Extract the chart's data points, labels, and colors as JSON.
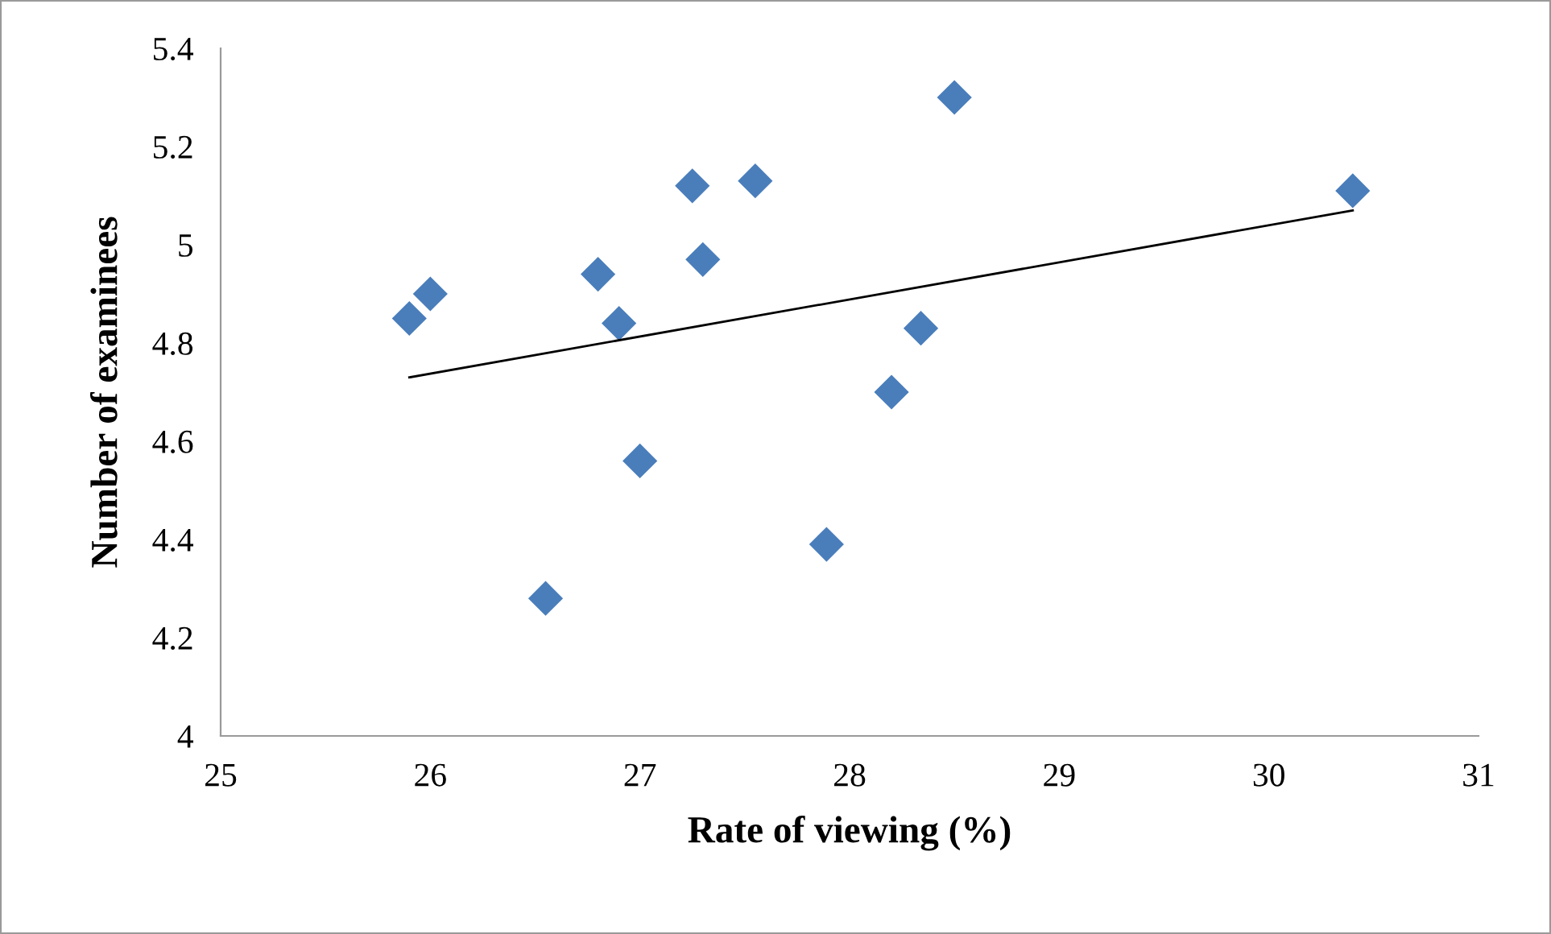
{
  "chart_data": {
    "type": "scatter",
    "xlabel": "Rate of viewing (%)",
    "ylabel": "Number of examinees",
    "xlim": [
      25,
      31
    ],
    "xticks": [
      25,
      26,
      27,
      28,
      29,
      30,
      31
    ],
    "ylim": [
      4,
      5.4
    ],
    "yticks": [
      {
        "value": 4,
        "label": "4"
      },
      4.2,
      4.4,
      4.6,
      4.8,
      {
        "value": 5,
        "label": "5"
      },
      5.2,
      5.4
    ],
    "grid": false,
    "marker": "diamond",
    "series": [
      {
        "color": "#4a7ebb",
        "x": [
          25.9,
          26.0,
          26.55,
          26.8,
          26.9,
          27.0,
          27.25,
          27.3,
          27.55,
          27.89,
          28.2,
          28.34,
          28.5,
          30.4
        ],
        "values": [
          4.85,
          4.9,
          4.28,
          4.94,
          4.84,
          4.56,
          5.12,
          4.97,
          5.13,
          4.39,
          4.7,
          4.83,
          5.3,
          5.11
        ]
      },
      {
        "type": "line",
        "color": "#000000",
        "marker": "none",
        "x": [
          25.9,
          30.4
        ],
        "values": [
          4.73,
          5.07
        ]
      }
    ]
  }
}
